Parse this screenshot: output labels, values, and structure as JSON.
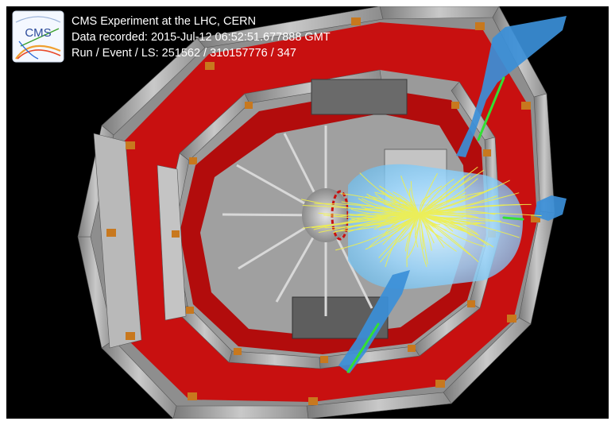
{
  "logo": {
    "text": "CMS"
  },
  "info": {
    "line1": "CMS Experiment at the LHC, CERN",
    "line2": "Data recorded: 2015-Jul-12 06:52:51.677888 GMT",
    "line3": "Run / Event / LS: 251562 / 310157776 / 347"
  },
  "colors": {
    "background": "#000000",
    "steel": "#a8a8a8",
    "red_yoke": "#c81010",
    "orange_brackets": "#c8781e",
    "calorimeter": "#8fd3ff",
    "tracks": "#f0f04a",
    "muon_towers": "#3b8fd8",
    "muon_tracks": "#33e033"
  }
}
